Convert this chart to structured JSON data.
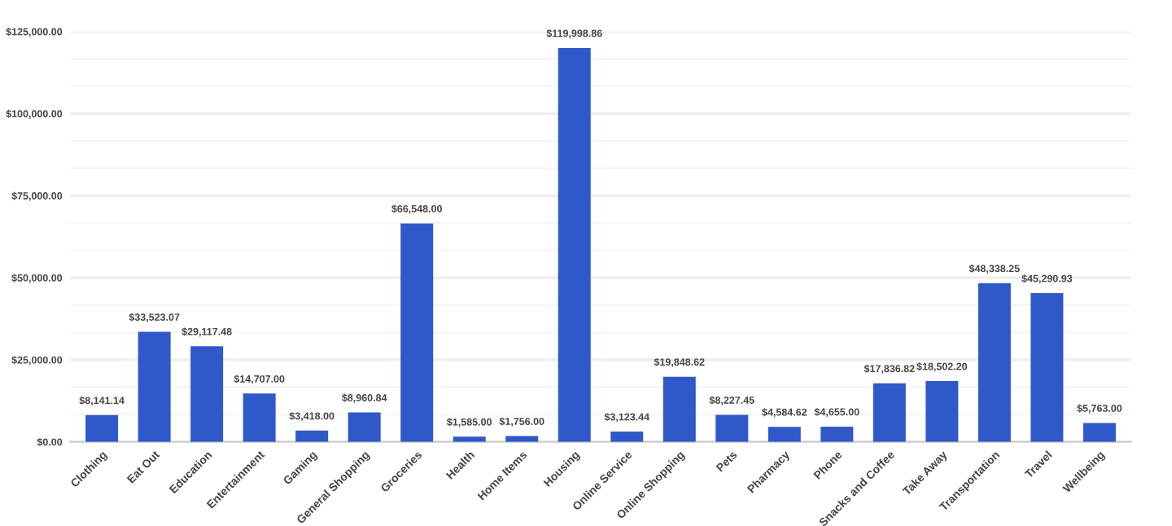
{
  "chart_data": {
    "type": "bar",
    "categories": [
      "Clothing",
      "Eat Out",
      "Education",
      "Entertainment",
      "Gaming",
      "General Shopping",
      "Groceries",
      "Health",
      "Home Items",
      "Housing",
      "Online Service",
      "Online Shopping",
      "Pets",
      "Pharmacy",
      "Phone",
      "Snacks and Coffee",
      "Take Away",
      "Transportation",
      "Travel",
      "Wellbeing"
    ],
    "values": [
      8141.14,
      33523.07,
      29117.48,
      14707.0,
      3418.0,
      8960.84,
      66548.0,
      1585.0,
      1756.0,
      119998.86,
      3123.44,
      19848.62,
      8227.45,
      4584.62,
      4655.0,
      17836.82,
      18502.2,
      48338.25,
      45290.93,
      5763.0
    ],
    "value_labels": [
      "$8,141.14",
      "$33,523.07",
      "$29,117.48",
      "$14,707.00",
      "$3,418.00",
      "$8,960.84",
      "$66,548.00",
      "$1,585.00",
      "$1,756.00",
      "$119,998.86",
      "$3,123.44",
      "$19,848.62",
      "$8,227.45",
      "$4,584.62",
      "$4,655.00",
      "$17,836.82",
      "$18,502.20",
      "$48,338.25",
      "$45,290.93",
      "$5,763.00"
    ],
    "color": "#2f59c9",
    "ylim": [
      0,
      125000
    ],
    "yticks": [
      {
        "value": 0,
        "label": "$0.00"
      },
      {
        "value": 25000,
        "label": "$25,000.00"
      },
      {
        "value": 50000,
        "label": "$50,000.00"
      },
      {
        "value": 75000,
        "label": "$75,000.00"
      },
      {
        "value": 100000,
        "label": "$100,000.00"
      },
      {
        "value": 125000,
        "label": "$125,000.00"
      }
    ],
    "grid": "y"
  }
}
